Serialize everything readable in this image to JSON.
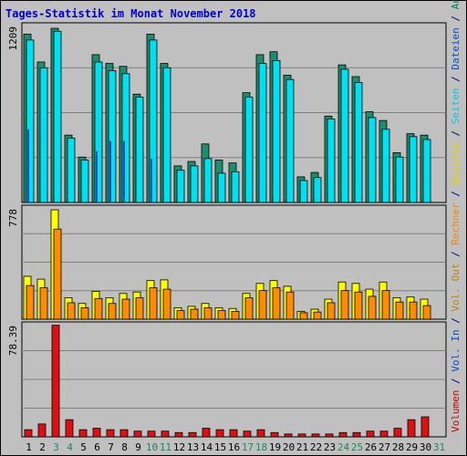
{
  "title": "Tages-Statistik im Monat November 2018",
  "right_legend": [
    {
      "text": "Volumen",
      "color": "#cc0000"
    },
    {
      "text": " / ",
      "color": "#000080"
    },
    {
      "text": "Vol. In",
      "color": "#0050c8"
    },
    {
      "text": " / ",
      "color": "#000080"
    },
    {
      "text": "Vol. Out",
      "color": "#b8860b"
    },
    {
      "text": " / ",
      "color": "#000080"
    },
    {
      "text": "Rechner",
      "color": "#ff8000"
    },
    {
      "text": " / ",
      "color": "#000080"
    },
    {
      "text": "Besuche",
      "color": "#e6d200"
    },
    {
      "text": " / ",
      "color": "#000080"
    },
    {
      "text": "Seiten",
      "color": "#00c8e6"
    },
    {
      "text": " / ",
      "color": "#000080"
    },
    {
      "text": "Dateien",
      "color": "#0050c8"
    },
    {
      "text": " / ",
      "color": "#000080"
    },
    {
      "text": "Anfragen",
      "color": "#00805a"
    }
  ],
  "chart_data": [
    {
      "type": "bar",
      "panel": "top",
      "ymax_label": "1209",
      "ylim": [
        0,
        1209
      ],
      "categories": [
        "1",
        "2",
        "3",
        "4",
        "5",
        "6",
        "7",
        "8",
        "9",
        "10",
        "11",
        "12",
        "13",
        "14",
        "15",
        "16",
        "17",
        "18",
        "19",
        "20",
        "21",
        "22",
        "23",
        "24",
        "25",
        "26",
        "27",
        "28",
        "29",
        "30",
        "31"
      ],
      "category_colors": [
        "#000000",
        "#000000",
        "#1a8a5a",
        "#1a8a5a",
        "#000000",
        "#000000",
        "#000000",
        "#000000",
        "#000000",
        "#1a8a5a",
        "#1a8a5a",
        "#000000",
        "#000000",
        "#000000",
        "#000000",
        "#000000",
        "#1a8a5a",
        "#1a8a5a",
        "#000000",
        "#000000",
        "#000000",
        "#000000",
        "#000000",
        "#1a8a5a",
        "#1a8a5a",
        "#000000",
        "#000000",
        "#000000",
        "#000000",
        "#000000",
        "#1a8a5a"
      ],
      "series": [
        {
          "name": "Anfragen",
          "color": "#1e8c6e",
          "values": [
            1150,
            960,
            1190,
            460,
            310,
            1010,
            950,
            930,
            740,
            1150,
            950,
            250,
            280,
            400,
            290,
            270,
            750,
            1010,
            1030,
            870,
            175,
            205,
            590,
            940,
            860,
            620,
            560,
            340,
            470,
            460,
            0
          ]
        },
        {
          "name": "Seiten",
          "color": "#00e0f0",
          "values": [
            1110,
            920,
            1170,
            440,
            290,
            960,
            900,
            880,
            720,
            1110,
            920,
            220,
            250,
            300,
            200,
            210,
            720,
            950,
            970,
            840,
            150,
            170,
            570,
            910,
            820,
            580,
            500,
            310,
            450,
            430,
            0
          ]
        },
        {
          "name": "Dateien",
          "color": "#0050c8",
          "values": [
            500,
            0,
            0,
            0,
            0,
            350,
            420,
            420,
            0,
            300,
            0,
            0,
            0,
            0,
            0,
            0,
            0,
            0,
            0,
            0,
            0,
            0,
            0,
            0,
            0,
            0,
            0,
            0,
            0,
            0,
            0
          ]
        }
      ]
    },
    {
      "type": "bar",
      "panel": "middle",
      "ymax_label": "778",
      "ylim": [
        0,
        778
      ],
      "series": [
        {
          "name": "Besuche",
          "color": "#ffff00",
          "values": [
            300,
            280,
            765,
            150,
            110,
            195,
            150,
            180,
            190,
            270,
            275,
            80,
            90,
            110,
            80,
            75,
            180,
            250,
            270,
            230,
            55,
            70,
            140,
            260,
            250,
            210,
            260,
            150,
            155,
            140,
            0
          ]
        },
        {
          "name": "Rechner",
          "color": "#ff8c00",
          "values": [
            235,
            220,
            630,
            115,
            80,
            145,
            110,
            140,
            150,
            220,
            210,
            60,
            70,
            80,
            60,
            55,
            150,
            200,
            220,
            190,
            45,
            50,
            115,
            200,
            190,
            160,
            200,
            120,
            120,
            95,
            0
          ]
        }
      ]
    },
    {
      "type": "bar",
      "panel": "bottom",
      "ymax_label": "78.39",
      "ylim": [
        0,
        78.39
      ],
      "series": [
        {
          "name": "Volumen",
          "color": "#e01010",
          "values": [
            5,
            9,
            78,
            12,
            5,
            6,
            5,
            5,
            4,
            4,
            4,
            3,
            3,
            6,
            5,
            5,
            4,
            5,
            3,
            2,
            2,
            2,
            2,
            3,
            3,
            4,
            4,
            6,
            12,
            14,
            0
          ]
        }
      ]
    }
  ]
}
